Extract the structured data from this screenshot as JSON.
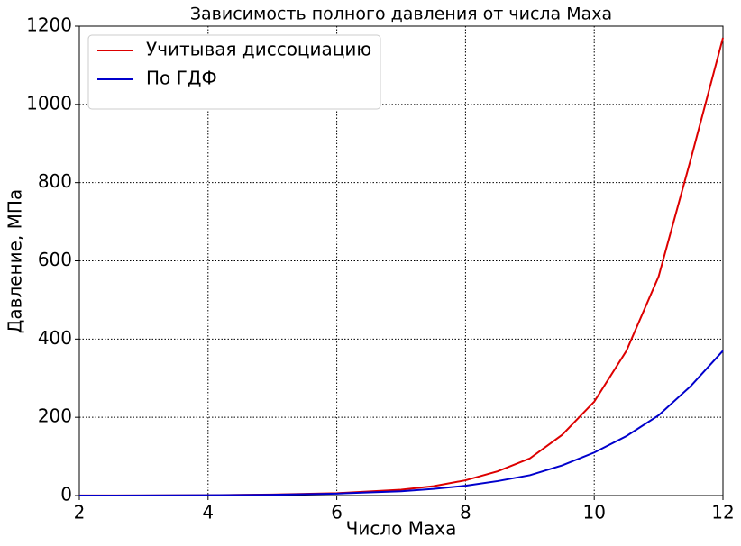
{
  "chart_data": {
    "type": "line",
    "title": "Зависимость полного давления от числа Маха",
    "x_label": "Число Маха",
    "y_label": "Давление, МПа",
    "x": [
      2,
      3,
      4,
      5,
      6,
      7,
      7.5,
      8,
      8.5,
      9,
      9.5,
      10,
      10.5,
      11,
      11.5,
      12
    ],
    "series": [
      {
        "name": "Учитывая диссоциацию",
        "color": "#dd0000",
        "values": [
          0.2,
          0.4,
          1,
          2.5,
          6,
          15,
          24,
          39,
          62,
          95,
          155,
          240,
          370,
          560,
          860,
          1170
        ]
      },
      {
        "name": "По ГДФ",
        "color": "#0000cc",
        "values": [
          0.05,
          0.2,
          0.8,
          2,
          5,
          11,
          17,
          25,
          37,
          52,
          77,
          110,
          152,
          205,
          280,
          370
        ]
      }
    ],
    "xlim": [
      2,
      12
    ],
    "xticks": [
      2,
      4,
      6,
      8,
      10,
      12
    ],
    "ylim": [
      0,
      1200
    ],
    "yticks": [
      0,
      200,
      400,
      600,
      800,
      1000,
      1200
    ],
    "grid": true,
    "legend": "upper-left"
  }
}
